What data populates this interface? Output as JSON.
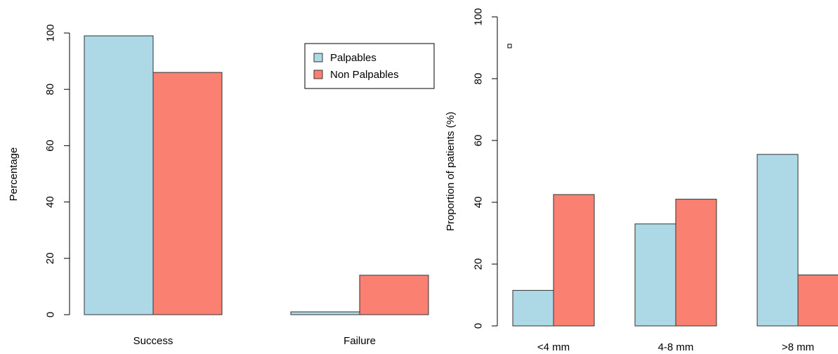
{
  "colors": {
    "palpables": "#ADD8E6",
    "non_palpables": "#FA8072",
    "stroke": "#333333",
    "axis": "#000000"
  },
  "chart_data": [
    {
      "type": "bar",
      "title": "",
      "xlabel": "",
      "ylabel": "Percentage",
      "categories": [
        "Success",
        "Failure"
      ],
      "series": [
        {
          "name": "Palpables",
          "values": [
            99,
            1
          ]
        },
        {
          "name": "Non Palpables",
          "values": [
            86,
            14
          ]
        }
      ],
      "ylim": [
        0,
        100
      ],
      "yticks": [
        0,
        20,
        40,
        60,
        80,
        100
      ],
      "grid": false,
      "legend": {
        "entries": [
          "Palpables",
          "Non Palpables"
        ],
        "placement": "top-right"
      }
    },
    {
      "type": "bar",
      "title": "",
      "xlabel": "",
      "ylabel": "Proportion of patients (%)",
      "categories": [
        "<4 mm",
        "4-8 mm",
        ">8 mm"
      ],
      "series": [
        {
          "values": [
            11.5,
            33,
            55.5
          ]
        },
        {
          "values": [
            42.5,
            41,
            16.5
          ]
        }
      ],
      "ylim": [
        0,
        100
      ],
      "yticks": [
        0,
        20,
        40,
        60,
        80,
        100
      ],
      "grid": false
    }
  ]
}
